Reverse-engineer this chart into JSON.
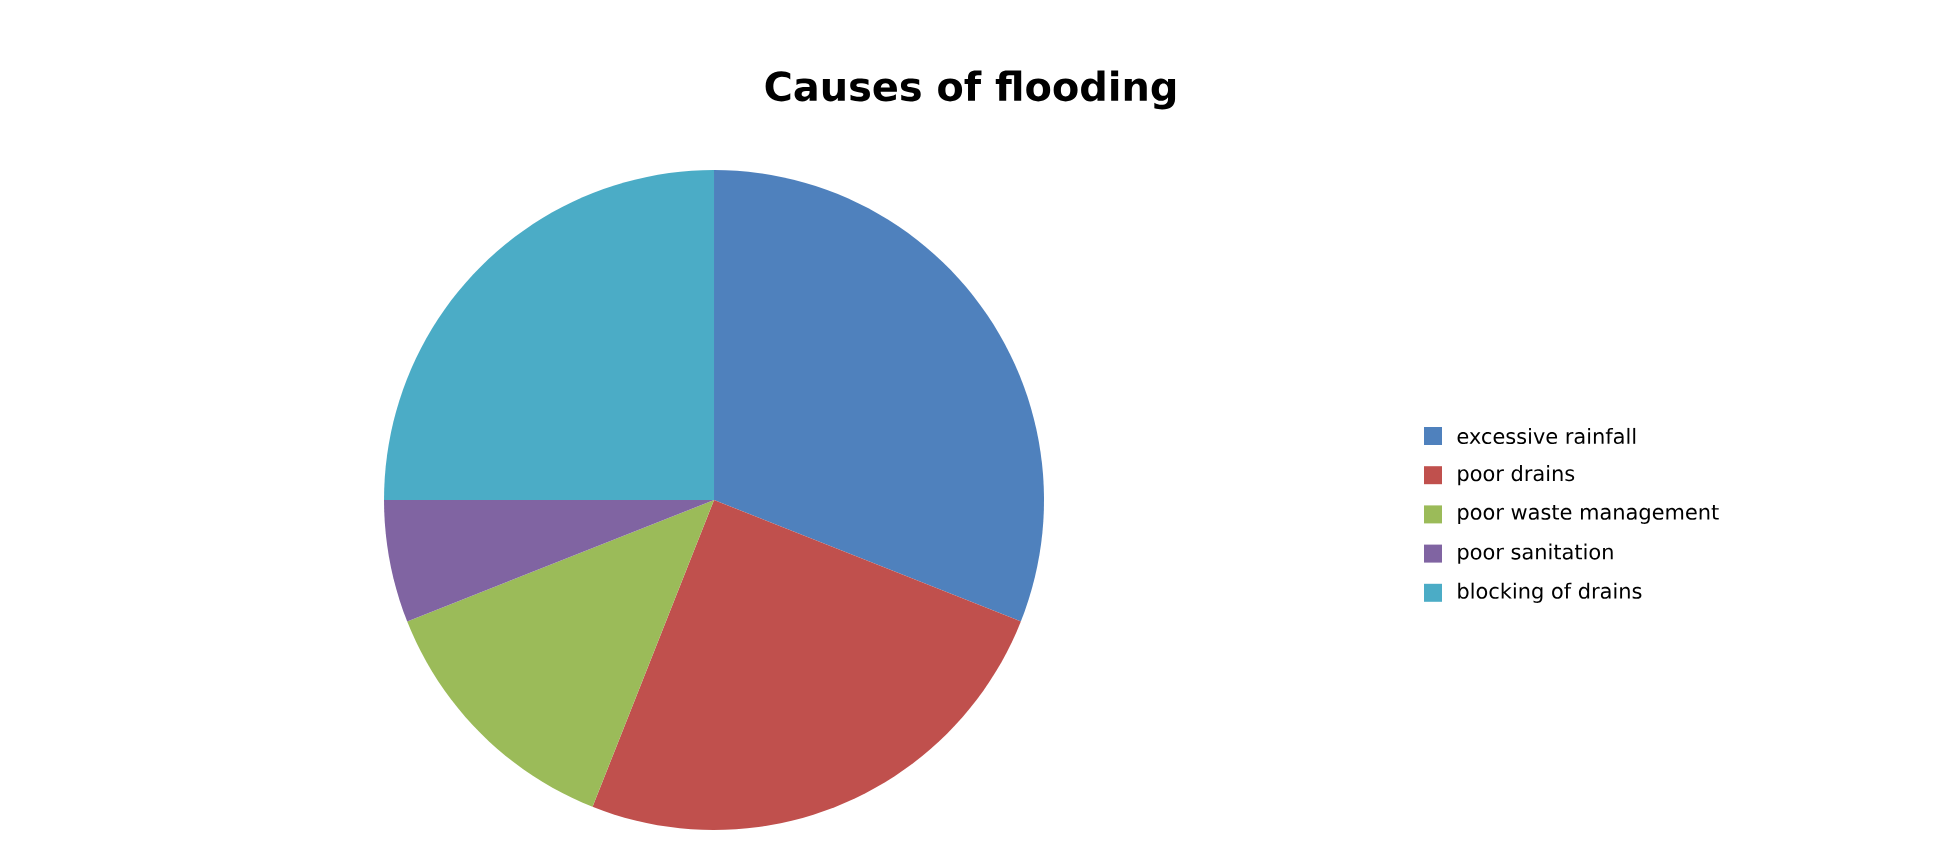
{
  "chart_data": {
    "type": "pie",
    "title": "Causes of flooding",
    "categories": [
      "excessive rainfall",
      "poor drains",
      "poor waste management",
      "poor sanitation",
      "blocking of drains"
    ],
    "values": [
      31,
      25,
      13,
      6,
      25
    ],
    "colors": [
      "#4f81bd",
      "#c0504d",
      "#9bbb59",
      "#8064a2",
      "#4bacc6"
    ],
    "legend": "right"
  }
}
